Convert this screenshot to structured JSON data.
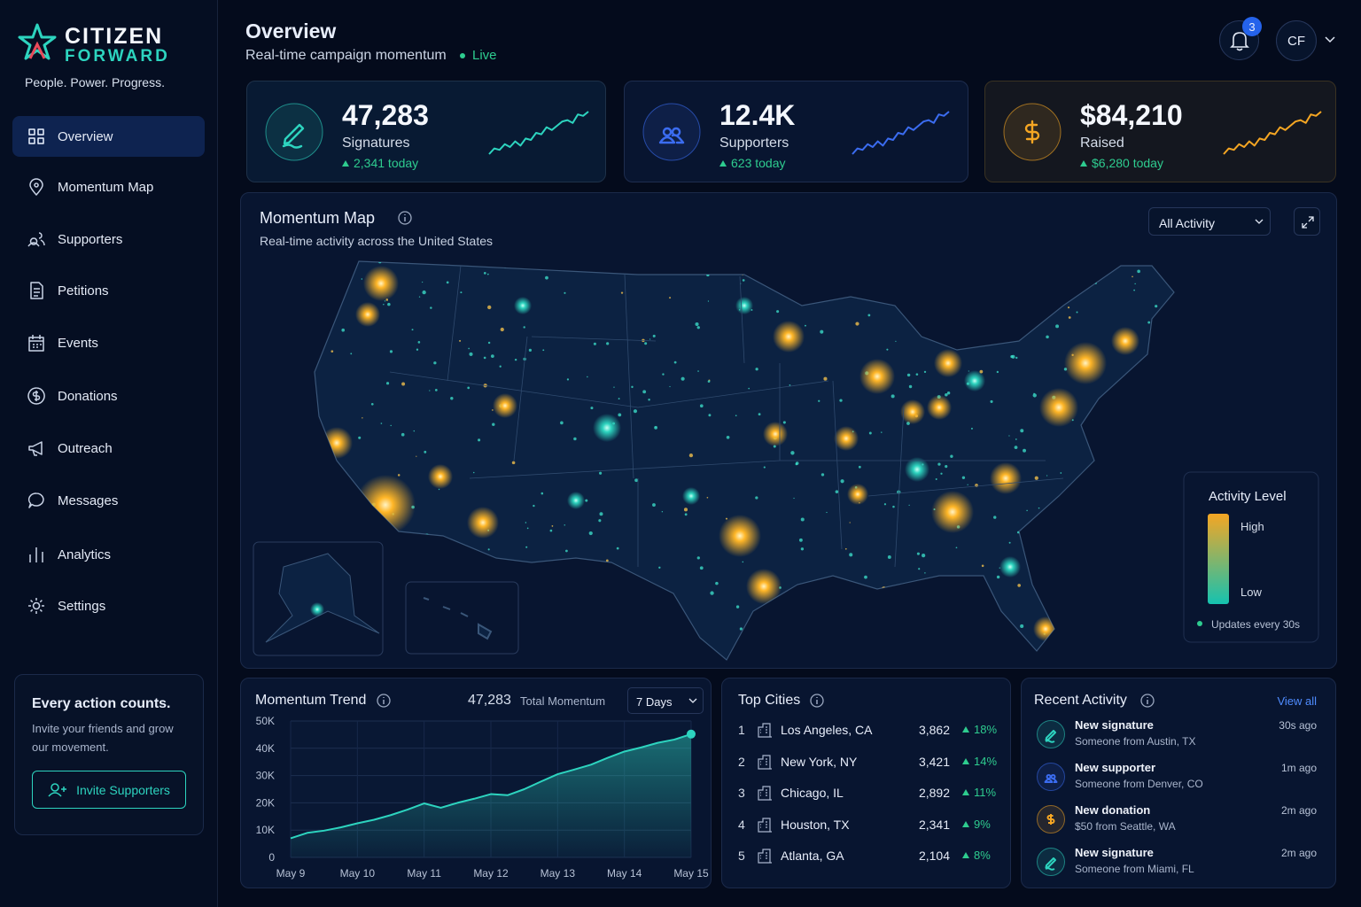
{
  "brand": {
    "name_top": "CITIZEN",
    "name_bottom": "FORWARD",
    "tagline": "People. Power. Progress."
  },
  "nav": [
    "Overview",
    "Momentum Map",
    "Supporters",
    "Petitions",
    "Events",
    "Donations",
    "Outreach",
    "Messages",
    "Analytics",
    "Settings"
  ],
  "promo": {
    "title": "Every action counts.",
    "text": "Invite your friends and grow our movement.",
    "button": "Invite Supporters"
  },
  "header": {
    "title": "Overview",
    "subtitle": "Real-time campaign momentum",
    "status": "Live",
    "notifications": "3",
    "avatar": "CF"
  },
  "stats": [
    {
      "value": "47,283",
      "label": "Signatures",
      "change": "2,341 today"
    },
    {
      "value": "12.4K",
      "label": "Supporters",
      "change": "623 today"
    },
    {
      "value": "$84,210",
      "label": "Raised",
      "change": "$6,280 today"
    }
  ],
  "map": {
    "title": "Momentum Map",
    "subtitle": "Real-time activity across the United States",
    "filter": "All Activity",
    "legend_title": "Activity Level",
    "legend_high": "High",
    "legend_low": "Low",
    "legend_note": "Updates every 30s"
  },
  "trend": {
    "title": "Momentum Trend",
    "total": "47,283",
    "total_label": "Total Momentum",
    "range": "7 Days"
  },
  "chart_data": {
    "type": "area",
    "categories": [
      "May 9",
      null,
      null,
      null,
      "May 10",
      null,
      null,
      null,
      "May 11",
      null,
      null,
      null,
      "May 12",
      null,
      null,
      null,
      "May 13",
      null,
      null,
      null,
      "May 14",
      null,
      null,
      null,
      "May 15"
    ],
    "values": [
      7000,
      9000,
      9800,
      11000,
      12500,
      13800,
      15500,
      17500,
      19800,
      18200,
      20000,
      21500,
      23200,
      22800,
      25000,
      27800,
      30500,
      32200,
      34000,
      36500,
      38800,
      40300,
      42000,
      43200,
      45200
    ],
    "color": "#2dd4bf",
    "ylim": [
      0,
      50000
    ],
    "yticks": [
      0,
      {
        "value": 10000,
        "label": "10K"
      },
      {
        "value": 20000,
        "label": "20K"
      },
      {
        "value": 30000,
        "label": "30K"
      },
      {
        "value": 40000,
        "label": "40K"
      },
      {
        "value": 50000,
        "label": "50K"
      }
    ],
    "grid": true
  },
  "top_cities": {
    "title": "Top Cities",
    "rows": [
      [
        "1",
        "Los Angeles, CA",
        "3,862",
        "18%"
      ],
      [
        "2",
        "New York, NY",
        "3,421",
        "14%"
      ],
      [
        "3",
        "Chicago, IL",
        "2,892",
        "11%"
      ],
      [
        "4",
        "Houston, TX",
        "2,341",
        "9%"
      ],
      [
        "5",
        "Atlanta, GA",
        "2,104",
        "8%"
      ]
    ]
  },
  "recent_activity": {
    "title": "Recent Activity",
    "link": "View all",
    "items": [
      {
        "title": "New signature",
        "detail": "Someone from Austin, TX",
        "time": "30s ago"
      },
      {
        "title": "New supporter",
        "detail": "Someone from Denver, CO",
        "time": "1m ago"
      },
      {
        "title": "New donation",
        "detail": "$50 from Seattle, WA",
        "time": "2m ago"
      },
      {
        "title": "New signature",
        "detail": "Someone from Miami, FL",
        "time": "2m ago"
      }
    ]
  }
}
